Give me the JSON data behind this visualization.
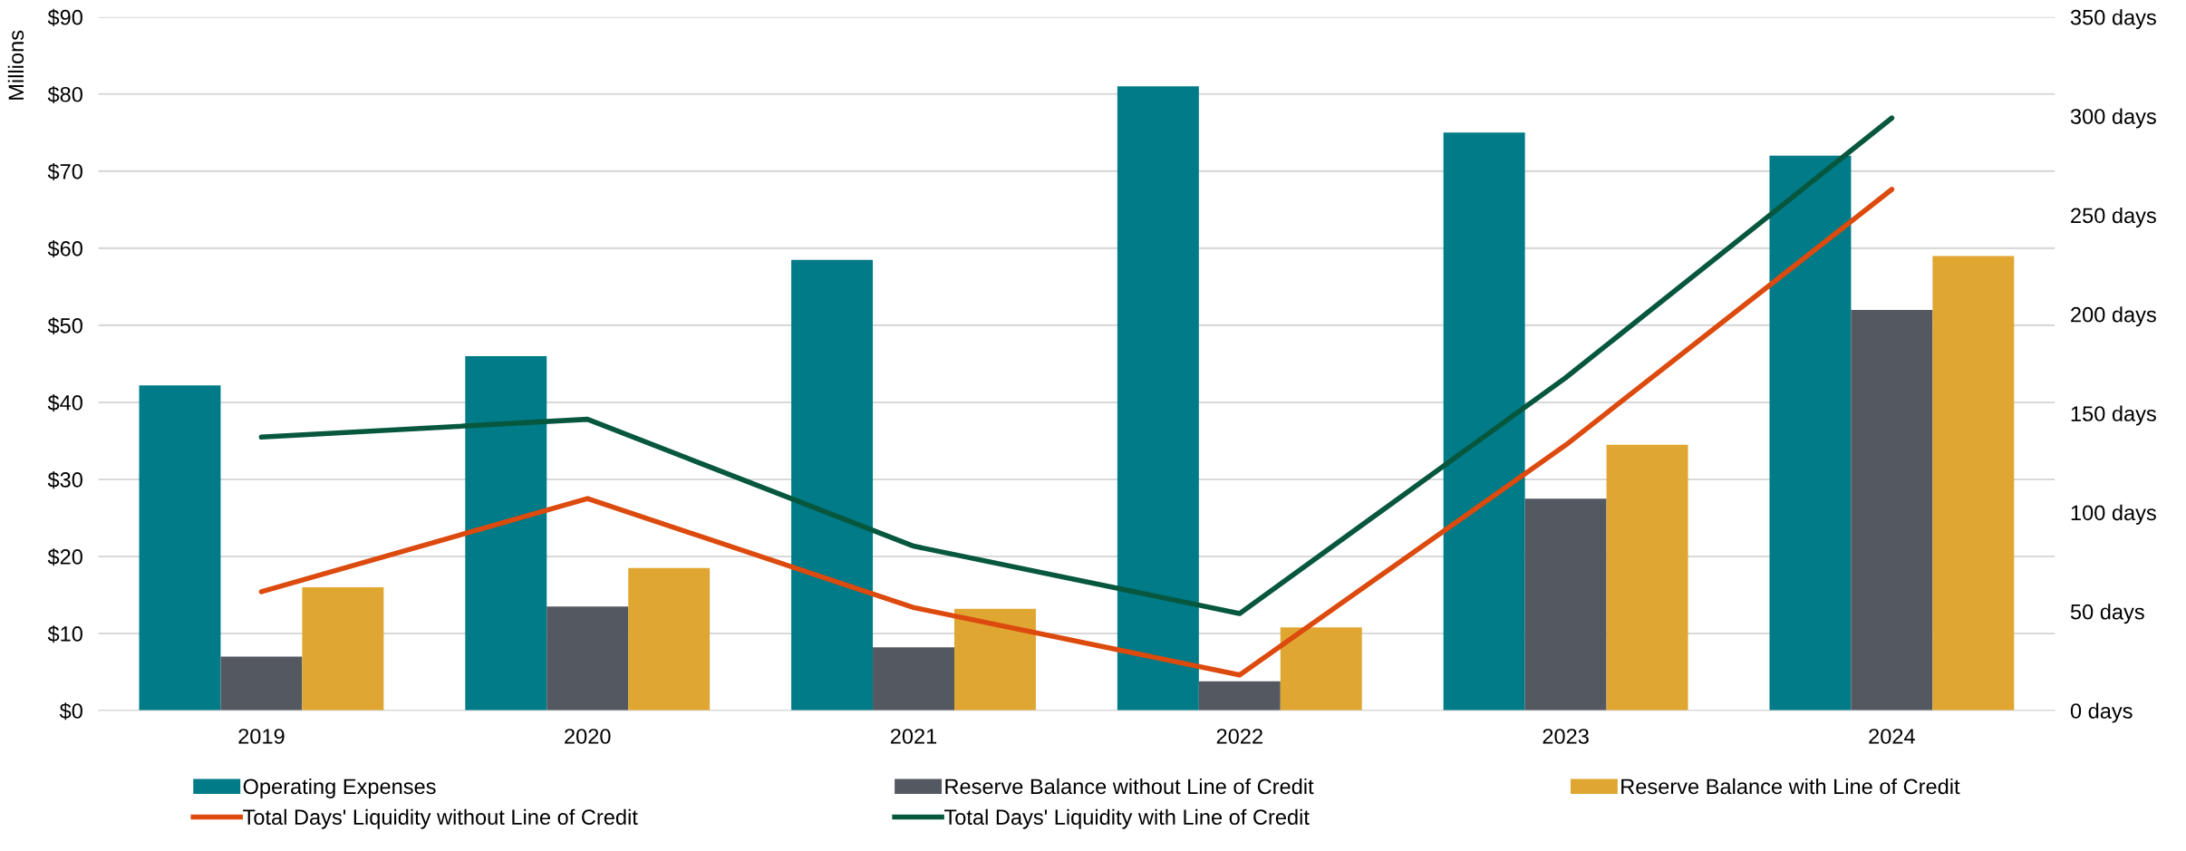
{
  "chart_data": {
    "type": "bar",
    "ylabel": "Millions",
    "categories": [
      "2019",
      "2020",
      "2021",
      "2022",
      "2023",
      "2024"
    ],
    "series": [
      {
        "name": "Operating Expenses",
        "color": "#007b87",
        "values": [
          42.2,
          46,
          58.5,
          81,
          75,
          72
        ]
      },
      {
        "name": "Reserve Balance without Line of Credit",
        "color": "#545861",
        "values": [
          7,
          13.5,
          8.2,
          3.8,
          27.5,
          52
        ]
      },
      {
        "name": "Reserve Balance with Line of Credit",
        "color": "#e0a632",
        "values": [
          16,
          18.5,
          13.2,
          10.8,
          34.5,
          59
        ]
      },
      {
        "name": "Total Days' Liquidity without Line of Credit",
        "type": "line",
        "axis": "y2",
        "color": "#dc4a0e",
        "values": [
          60,
          107,
          52,
          18,
          134,
          263
        ]
      },
      {
        "name": "Total Days' Liquidity with Line of Credit",
        "type": "line",
        "axis": "y2",
        "color": "#07573e",
        "values": [
          138,
          147,
          83,
          49,
          168,
          299
        ]
      }
    ],
    "ylim": [
      0,
      90
    ],
    "yticks": [
      {
        "value": 0,
        "label": "$0"
      },
      {
        "value": 10,
        "label": "$10"
      },
      {
        "value": 20,
        "label": "$20"
      },
      {
        "value": 30,
        "label": "$30"
      },
      {
        "value": 40,
        "label": "$40"
      },
      {
        "value": 50,
        "label": "$50"
      },
      {
        "value": 60,
        "label": "$60"
      },
      {
        "value": 70,
        "label": "$70"
      },
      {
        "value": 80,
        "label": "$80"
      },
      {
        "value": 90,
        "label": "$90"
      }
    ],
    "y2lim": [
      0,
      350
    ],
    "y2ticks": [
      {
        "value": 0,
        "label": "0 days"
      },
      {
        "value": 50,
        "label": "50 days"
      },
      {
        "value": 100,
        "label": "100 days"
      },
      {
        "value": 150,
        "label": "150 days"
      },
      {
        "value": 200,
        "label": "200 days"
      },
      {
        "value": 250,
        "label": "250 days"
      },
      {
        "value": 300,
        "label": "300 days"
      },
      {
        "value": 350,
        "label": "350 days"
      }
    ],
    "grid": "y",
    "legend": "bottom",
    "marker": "none",
    "line_style": "solid"
  }
}
